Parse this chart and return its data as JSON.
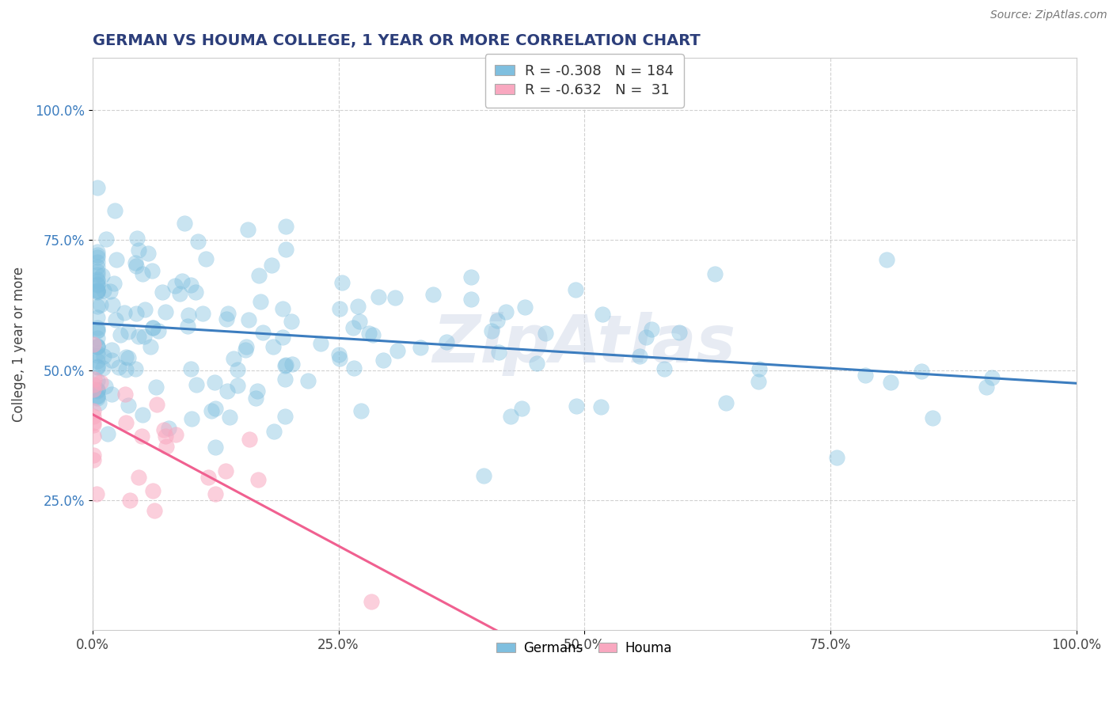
{
  "title": "GERMAN VS HOUMA COLLEGE, 1 YEAR OR MORE CORRELATION CHART",
  "source_text": "Source: ZipAtlas.com",
  "ylabel": "College, 1 year or more",
  "xlim": [
    0.0,
    1.0
  ],
  "x_tick_labels": [
    "0.0%",
    "25.0%",
    "50.0%",
    "75.0%",
    "100.0%"
  ],
  "x_tick_values": [
    0.0,
    0.25,
    0.5,
    0.75,
    1.0
  ],
  "y_tick_labels": [
    "25.0%",
    "50.0%",
    "75.0%",
    "100.0%"
  ],
  "y_tick_values": [
    0.25,
    0.5,
    0.75,
    1.0
  ],
  "legend_blue_R": "R = ",
  "legend_blue_Rval": "-0.308",
  "legend_blue_N": "  N = 184",
  "legend_pink_R": "R = ",
  "legend_pink_Rval": "-0.632",
  "legend_pink_N": "  N =  31",
  "legend_blue_label": "R = -0.308   N = 184",
  "legend_pink_label": "R = -0.632   N =  31",
  "blue_color": "#7fbfdf",
  "pink_color": "#f9a8c0",
  "blue_line_color": "#3c7dbf",
  "pink_line_color": "#f06090",
  "title_color": "#2c3e7a",
  "source_color": "#777777",
  "R_blue": -0.308,
  "N_blue": 184,
  "R_pink": -0.632,
  "N_pink": 31,
  "seed_blue": 42,
  "seed_pink": 99,
  "background_color": "#ffffff",
  "grid_color": "#cccccc",
  "watermark_text": "ZipAtlas",
  "bottom_legend_labels": [
    "Germans",
    "Houma"
  ]
}
